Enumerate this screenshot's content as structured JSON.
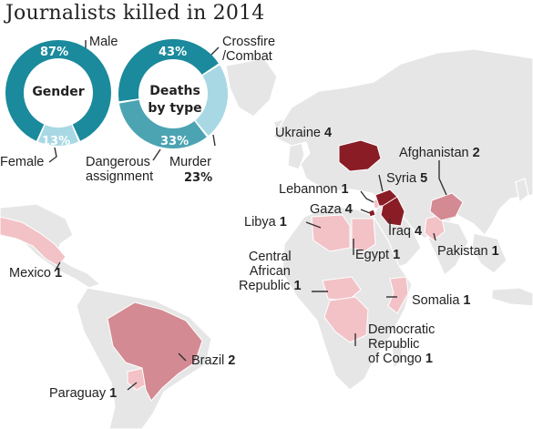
{
  "title": "Journalists killed in 2014",
  "colors": {
    "donut_dark": "#1a8a9c",
    "donut_light": "#a8d8e4",
    "land": "#e6e6e6",
    "country_1": "#f2c2c7",
    "country_2": "#d48a92",
    "country_4_5": "#8a1c26"
  },
  "gender_chart": {
    "center_label": "Gender",
    "segments": [
      {
        "label": "Male",
        "percent": 87,
        "percent_text": "87%"
      },
      {
        "label": "Female",
        "percent": 13,
        "percent_text": "13%"
      }
    ]
  },
  "deaths_chart": {
    "center_line1": "Deaths",
    "center_line2": "by type",
    "segments": [
      {
        "label_line1": "Crossfire",
        "label_line2": "/Combat",
        "percent": 43,
        "percent_text": "43%"
      },
      {
        "label": "Murder",
        "percent": 23,
        "percent_text": "23%"
      },
      {
        "label_line1": "Dangerous",
        "label_line2": "assignment",
        "percent": 33,
        "percent_text": "33%"
      }
    ]
  },
  "countries": [
    {
      "name": "Ukraine",
      "count": "4"
    },
    {
      "name": "Afghanistan",
      "count": "2"
    },
    {
      "name": "Syria",
      "count": "5"
    },
    {
      "name": "Lebannon",
      "count": "1"
    },
    {
      "name": "Gaza",
      "count": "4"
    },
    {
      "name": "Iraq",
      "count": "4"
    },
    {
      "name": "Libya",
      "count": "1"
    },
    {
      "name": "Egypt",
      "count": "1"
    },
    {
      "name": "Pakistan",
      "count": "1"
    },
    {
      "name_line1": "Central",
      "name_line2": "African",
      "name_line3": "Republic",
      "count": "1"
    },
    {
      "name": "Somalia",
      "count": "1"
    },
    {
      "name_line1": "Democratic",
      "name_line2": "Republic",
      "name_line3": "of Congo",
      "count": "1"
    },
    {
      "name": "Mexico",
      "count": "1"
    },
    {
      "name": "Brazil",
      "count": "2"
    },
    {
      "name": "Paraguay",
      "count": "1"
    }
  ]
}
